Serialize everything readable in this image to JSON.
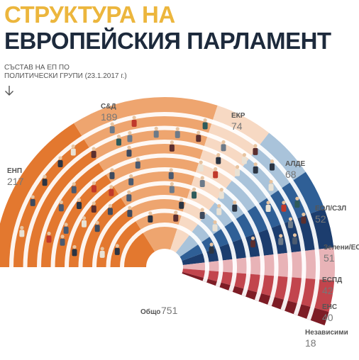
{
  "header": {
    "title_line1": "СТРУКТУРА НА",
    "title_line2": "ЕВРОПЕЙСКИЯ ПАРЛАМЕНТ",
    "subtitle_line1": "СЪСТАВ НА ЕП ПО",
    "subtitle_line2": "ПОЛИТИЧЕСКИ ГРУПИ (23.1.2017 г.)"
  },
  "colors": {
    "title_accent": "#ecb63d",
    "title_dark": "#1d2a3c"
  },
  "icons": {
    "down_arrow": "down-arrow-icon"
  },
  "chart_data": {
    "type": "pie",
    "variant": "parliament-hemicycle",
    "total_label": "Общо",
    "total": 751,
    "series": [
      {
        "name": "ЕНП",
        "value": 217,
        "color": "#e3782f"
      },
      {
        "name": "С&Д",
        "value": 189,
        "color": "#eea56f"
      },
      {
        "name": "ЕКР",
        "value": 74,
        "color": "#f7d9c3"
      },
      {
        "name": "АЛДЕ",
        "value": 68,
        "color": "#a9c3da"
      },
      {
        "name": "ЕОЛ/СЗЛ",
        "value": 52,
        "color": "#2f5f96"
      },
      {
        "name": "Зелени/ЕСА",
        "value": 51,
        "color": "#1c3d6e"
      },
      {
        "name": "ЕСПД",
        "value": 42,
        "color": "#e8b3b7"
      },
      {
        "name": "ЕНС",
        "value": 40,
        "color": "#c2454d"
      },
      {
        "name": "Независими",
        "value": 18,
        "color": "#7d1c25"
      }
    ]
  }
}
